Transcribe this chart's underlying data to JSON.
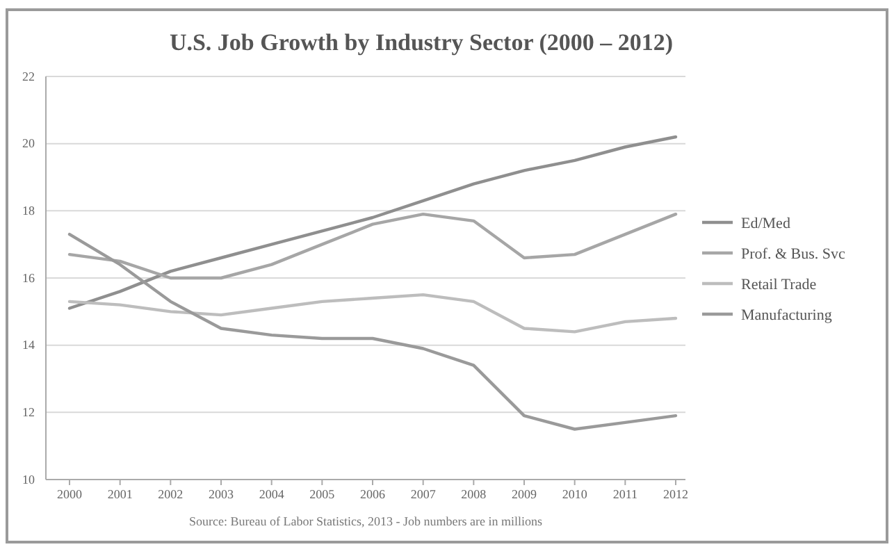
{
  "chart_data": {
    "type": "line",
    "title": "U.S. Job Growth by Industry Sector (2000 – 2012)",
    "categories": [
      "2000",
      "2001",
      "2002",
      "2003",
      "2004",
      "2005",
      "2006",
      "2007",
      "2008",
      "2009",
      "2010",
      "2011",
      "2012"
    ],
    "series": [
      {
        "name": "Ed/Med",
        "color": "#8f8f8f",
        "values": [
          15.1,
          15.6,
          16.2,
          16.6,
          17.0,
          17.4,
          17.8,
          18.3,
          18.8,
          19.2,
          19.5,
          19.9,
          20.2
        ]
      },
      {
        "name": "Prof. & Bus. Svc",
        "color": "#a6a6a6",
        "values": [
          16.7,
          16.5,
          16.0,
          16.0,
          16.4,
          17.0,
          17.6,
          17.9,
          17.7,
          16.6,
          16.7,
          17.3,
          17.9
        ]
      },
      {
        "name": "Retail Trade",
        "color": "#bdbdbd",
        "values": [
          15.3,
          15.2,
          15.0,
          14.9,
          15.1,
          15.3,
          15.4,
          15.5,
          15.3,
          14.5,
          14.4,
          14.7,
          14.8
        ]
      },
      {
        "name": "Manufacturing",
        "color": "#9a9a9a",
        "values": [
          17.3,
          16.4,
          15.3,
          14.5,
          14.3,
          14.2,
          14.2,
          13.9,
          13.4,
          11.9,
          11.5,
          11.7,
          11.9
        ]
      }
    ],
    "ylim": [
      10,
      22
    ],
    "yticks": [
      10,
      12,
      14,
      16,
      18,
      20,
      22
    ],
    "grid": "y",
    "legend": "right",
    "marker": "none",
    "annotations": [
      "Source: Bureau of Labor Statistics, 2013 - Job numbers are in millions"
    ]
  }
}
